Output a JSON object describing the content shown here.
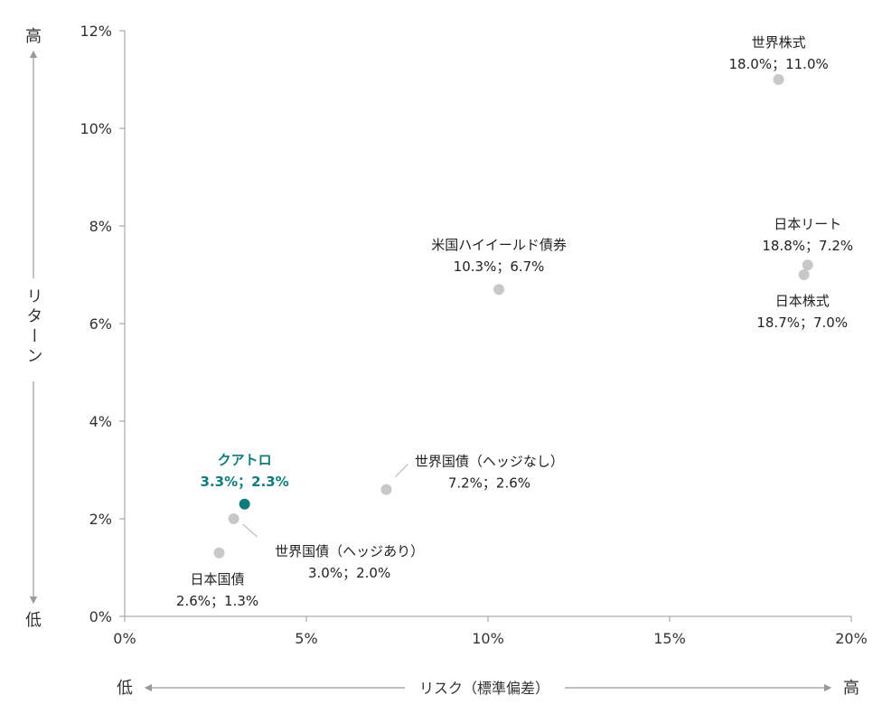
{
  "chart_data": {
    "type": "scatter",
    "xlabel": "リスク（標準偏差）",
    "ylabel": "リターン",
    "x_low_label": "低",
    "x_high_label": "高",
    "y_low_label": "低",
    "y_high_label": "高",
    "xlim": [
      0,
      20
    ],
    "ylim": [
      0,
      12
    ],
    "x_ticks": [
      0,
      5,
      10,
      15,
      20
    ],
    "y_ticks": [
      0,
      2,
      4,
      6,
      8,
      10,
      12
    ],
    "x_tick_labels": [
      "0%",
      "5%",
      "10%",
      "15%",
      "20%"
    ],
    "y_tick_labels": [
      "0%",
      "2%",
      "4%",
      "6%",
      "8%",
      "10%",
      "12%"
    ],
    "grid": false,
    "colors": {
      "point": "#c8c8c8",
      "highlight": "#0f7b7b",
      "axis": "#9a9a9a"
    },
    "points": [
      {
        "name": "世界株式",
        "value_text": "18.0%；11.0%",
        "x": 18.0,
        "y": 11.0,
        "highlight": false
      },
      {
        "name": "日本リート",
        "value_text": "18.8%；7.2%",
        "x": 18.8,
        "y": 7.2,
        "highlight": false
      },
      {
        "name": "日本株式",
        "value_text": "18.7%；7.0%",
        "x": 18.7,
        "y": 7.0,
        "highlight": false
      },
      {
        "name": "米国ハイイールド債券",
        "value_text": "10.3%；6.7%",
        "x": 10.3,
        "y": 6.7,
        "highlight": false
      },
      {
        "name": "世界国債（ヘッジなし）",
        "value_text": "7.2%；2.6%",
        "x": 7.2,
        "y": 2.6,
        "highlight": false
      },
      {
        "name": "クアトロ",
        "value_text": "3.3%；2.3%",
        "x": 3.3,
        "y": 2.3,
        "highlight": true
      },
      {
        "name": "世界国債（ヘッジあり）",
        "value_text": "3.0%；2.0%",
        "x": 3.0,
        "y": 2.0,
        "highlight": false
      },
      {
        "name": "日本国債",
        "value_text": "2.6%；1.3%",
        "x": 2.6,
        "y": 1.3,
        "highlight": false
      }
    ]
  }
}
